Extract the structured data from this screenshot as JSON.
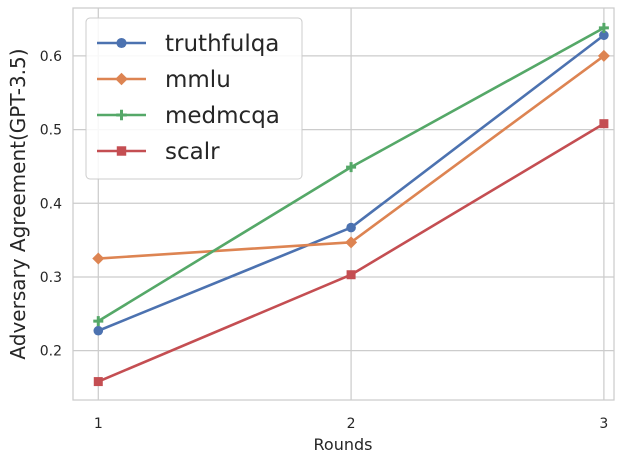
{
  "chart_data": {
    "type": "line",
    "xlabel": "Rounds",
    "ylabel": "Adversary Agreement(GPT-3.5)",
    "x": [
      1,
      2,
      3
    ],
    "x_tick_labels": [
      "1",
      "2",
      "3"
    ],
    "y_ticks": [
      0.2,
      0.3,
      0.4,
      0.5,
      0.6
    ],
    "y_tick_labels": [
      "0.2",
      "0.3",
      "0.4",
      "0.5",
      "0.6"
    ],
    "xlim": [
      0.9,
      3.04
    ],
    "ylim": [
      0.133,
      0.665
    ],
    "grid": true,
    "legend_position": "top-left",
    "series": [
      {
        "name": "truthfulqa",
        "values": [
          0.227,
          0.367,
          0.628
        ],
        "color": "#4c72b0",
        "marker": "circle"
      },
      {
        "name": "mmlu",
        "values": [
          0.325,
          0.347,
          0.6
        ],
        "color": "#dd8452",
        "marker": "diamond"
      },
      {
        "name": "medmcqa",
        "values": [
          0.24,
          0.449,
          0.638
        ],
        "color": "#55a868",
        "marker": "plus"
      },
      {
        "name": "scalr",
        "values": [
          0.158,
          0.303,
          0.508
        ],
        "color": "#c44e52",
        "marker": "square"
      }
    ]
  }
}
